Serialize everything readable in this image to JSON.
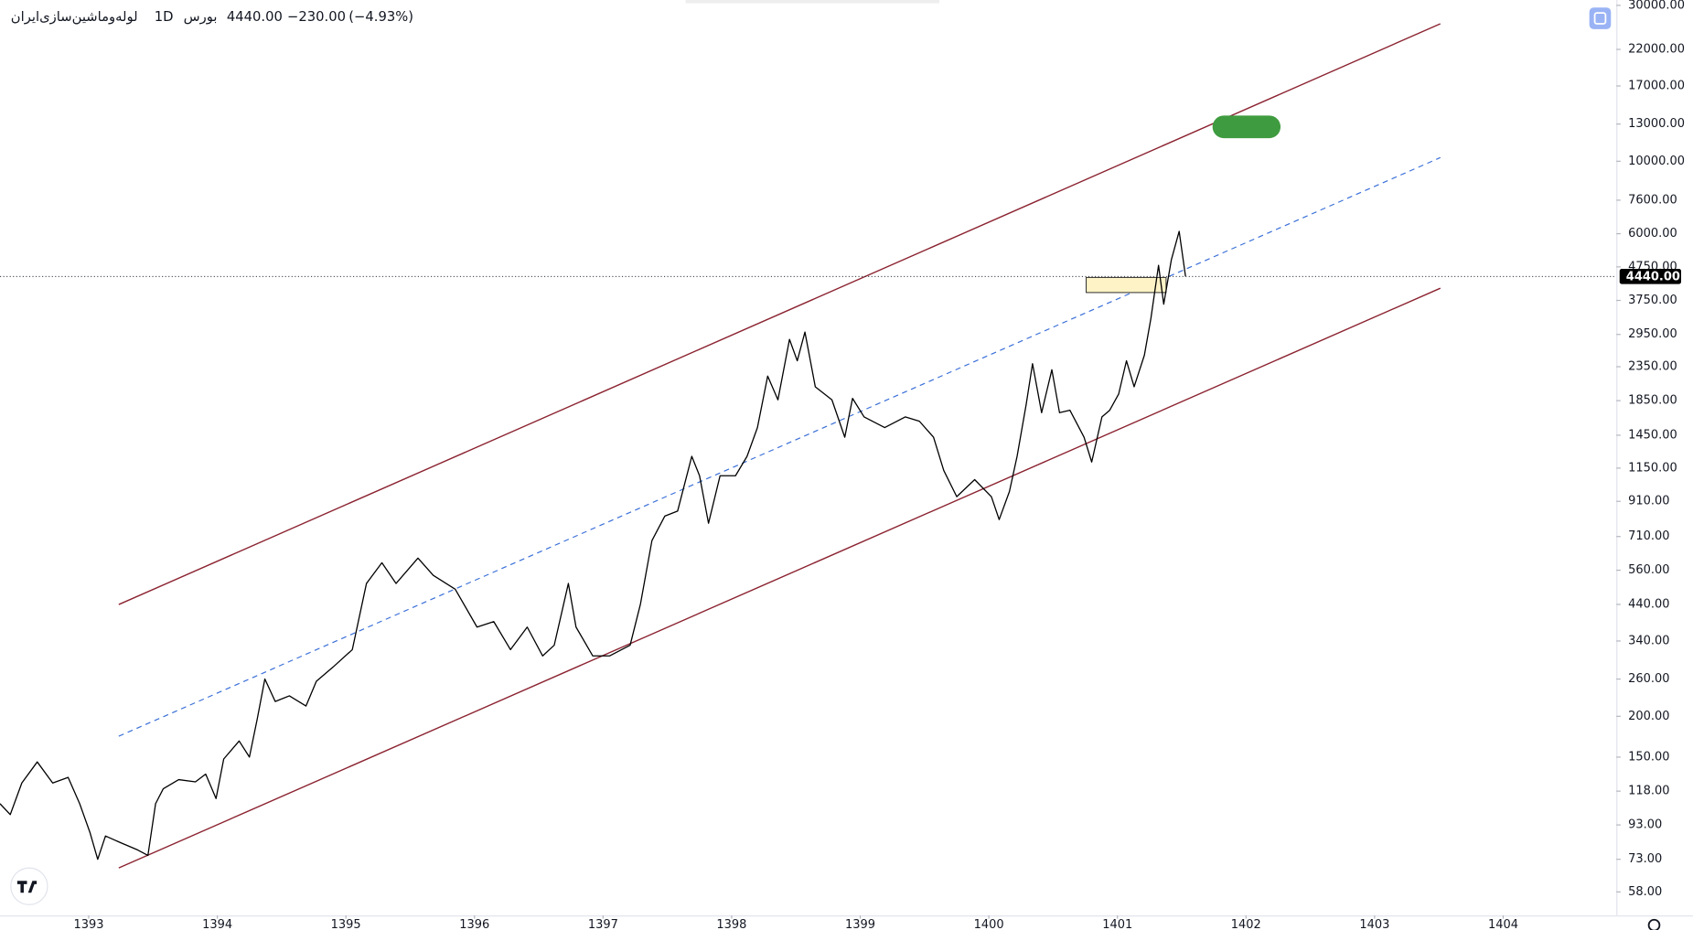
{
  "header": {
    "symbol": "لوله‌وماشین‌سازی‌ایران",
    "interval": "1D",
    "exchange": "بورس",
    "change": "−230.00",
    "change_percent": "(−4.93%)"
  },
  "chart_data": {
    "type": "line",
    "color": "#000000",
    "log_scale": true,
    "grid": false,
    "last_price": {
      "value": 4440,
      "label": "4440.00"
    },
    "x": [
      1392.31,
      1392.39,
      1392.48,
      1392.6,
      1392.72,
      1392.84,
      1392.93,
      1393.01,
      1393.07,
      1393.13,
      1393.25,
      1393.38,
      1393.46,
      1393.52,
      1393.58,
      1393.7,
      1393.83,
      1393.91,
      1393.99,
      1394.05,
      1394.17,
      1394.25,
      1394.31,
      1394.37,
      1394.45,
      1394.56,
      1394.69,
      1394.77,
      1394.9,
      1395.05,
      1395.16,
      1395.28,
      1395.39,
      1395.56,
      1395.68,
      1395.85,
      1396.02,
      1396.15,
      1396.28,
      1396.41,
      1396.53,
      1396.62,
      1396.73,
      1396.79,
      1396.92,
      1397.05,
      1397.21,
      1397.29,
      1397.38,
      1397.48,
      1397.58,
      1397.69,
      1397.75,
      1397.82,
      1397.91,
      1398.03,
      1398.12,
      1398.2,
      1398.28,
      1398.36,
      1398.45,
      1398.51,
      1398.57,
      1398.65,
      1398.78,
      1398.88,
      1398.94,
      1399.03,
      1399.19,
      1399.35,
      1399.46,
      1399.57,
      1399.65,
      1399.75,
      1399.89,
      1400.02,
      1400.08,
      1400.16,
      1400.22,
      1400.29,
      1400.34,
      1400.41,
      1400.49,
      1400.55,
      1400.63,
      1400.74,
      1400.8,
      1400.88,
      1400.94,
      1401.01,
      1401.07,
      1401.13,
      1401.21,
      1401.26,
      1401.32,
      1401.36,
      1401.42,
      1401.48,
      1401.53
    ],
    "values": [
      108,
      100,
      125,
      145,
      125,
      130,
      108,
      88,
      73,
      86,
      82,
      78,
      75,
      108,
      120,
      128,
      126,
      133,
      112,
      148,
      168,
      150,
      196,
      260,
      222,
      231,
      215,
      256,
      283,
      320,
      510,
      590,
      510,
      610,
      540,
      490,
      375,
      390,
      320,
      375,
      306,
      330,
      510,
      375,
      306,
      306,
      330,
      440,
      690,
      820,
      850,
      1250,
      1090,
      780,
      1090,
      1090,
      1250,
      1530,
      2200,
      1860,
      2850,
      2450,
      3000,
      2040,
      1860,
      1430,
      1880,
      1650,
      1530,
      1650,
      1600,
      1430,
      1130,
      940,
      1060,
      940,
      800,
      975,
      1250,
      1800,
      2400,
      1700,
      2300,
      1700,
      1730,
      1430,
      1200,
      1650,
      1730,
      1940,
      2450,
      2040,
      2550,
      3300,
      4800,
      3650,
      5000,
      6100,
      4440
    ],
    "xlim": [
      1392.31,
      1404.88
    ],
    "xticks": [
      1393,
      1394,
      1395,
      1396,
      1397,
      1398,
      1399,
      1400,
      1401,
      1402,
      1403,
      1404
    ],
    "ylim": [
      48.4,
      31160
    ],
    "yticks": [
      {
        "value": 30000,
        "label": "30000.00"
      },
      {
        "value": 22000,
        "label": "22000.00"
      },
      {
        "value": 17000,
        "label": "17000.00"
      },
      {
        "value": 13000,
        "label": "13000.00"
      },
      {
        "value": 10000,
        "label": "10000.00"
      },
      {
        "value": 7600,
        "label": "7600.00"
      },
      {
        "value": 6000,
        "label": "6000.00"
      },
      {
        "value": 4750,
        "label": "4750.00"
      },
      {
        "value": 3750,
        "label": "3750.00"
      },
      {
        "value": 2950,
        "label": "2950.00"
      },
      {
        "value": 2350,
        "label": "2350.00"
      },
      {
        "value": 1850,
        "label": "1850.00"
      },
      {
        "value": 1450,
        "label": "1450.00"
      },
      {
        "value": 1150,
        "label": "1150.00"
      },
      {
        "value": 910,
        "label": "910.00"
      },
      {
        "value": 710,
        "label": "710.00"
      },
      {
        "value": 560,
        "label": "560.00"
      },
      {
        "value": 440,
        "label": "440.00"
      },
      {
        "value": 340,
        "label": "340.00"
      },
      {
        "value": 260,
        "label": "260.00"
      },
      {
        "value": 200,
        "label": "200.00"
      },
      {
        "value": 150,
        "label": "150.00"
      },
      {
        "value": 118,
        "label": "118.00"
      },
      {
        "value": 93,
        "label": "93.00"
      },
      {
        "value": 73,
        "label": "73.00"
      },
      {
        "value": 58,
        "label": "58.00"
      }
    ]
  }
}
